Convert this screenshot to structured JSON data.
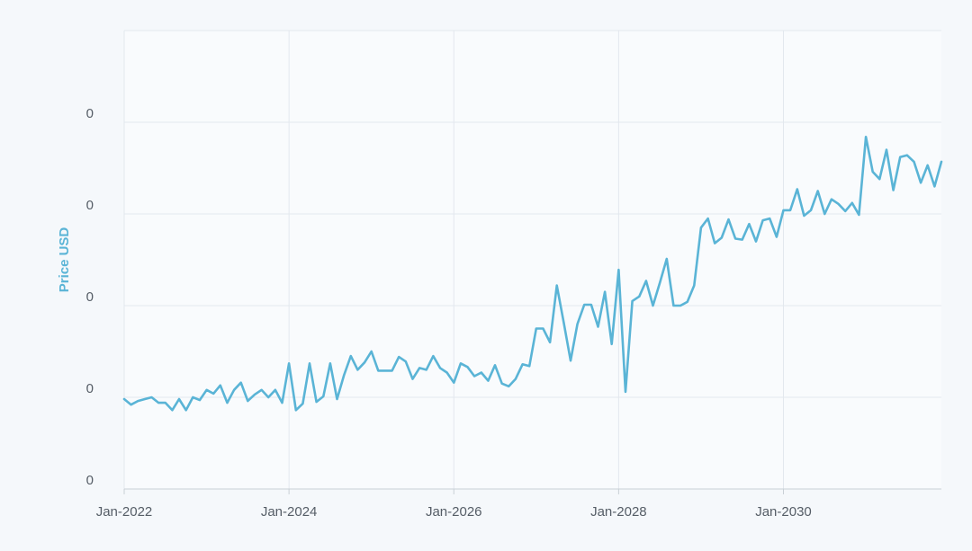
{
  "chart_data": {
    "type": "line",
    "title": "",
    "xlabel": "",
    "ylabel": "Price USD",
    "grid": true,
    "legend": "none",
    "colors": {
      "line": "#5ab4d6",
      "grid": "#e3e8ee",
      "axis": "#c9d0d6",
      "ylabel": "#5ab4d6",
      "plot_bg": "#f9fbfd",
      "page_bg": "#f5f8fb"
    },
    "x_ticks": [
      "Jan-2022",
      "Jan-2024",
      "Jan-2026",
      "Jan-2028",
      "Jan-2030"
    ],
    "y_tick_labels": [
      "0",
      "0",
      "0",
      "0",
      "0"
    ],
    "x_range": [
      "2022-01",
      "2031-12"
    ],
    "y_range": [
      0,
      5
    ],
    "series": [
      {
        "x": [
          "2022-01",
          "2022-02",
          "2022-03",
          "2022-04",
          "2022-05",
          "2022-06",
          "2022-07",
          "2022-08",
          "2022-09",
          "2022-10",
          "2022-11",
          "2022-12",
          "2023-01",
          "2023-02",
          "2023-03",
          "2023-04",
          "2023-05",
          "2023-06",
          "2023-07",
          "2023-08",
          "2023-09",
          "2023-10",
          "2023-11",
          "2023-12",
          "2024-01",
          "2024-02",
          "2024-03",
          "2024-04",
          "2024-05",
          "2024-06",
          "2024-07",
          "2024-08",
          "2024-09",
          "2024-10",
          "2024-11",
          "2024-12",
          "2025-01",
          "2025-02",
          "2025-03",
          "2025-04",
          "2025-05",
          "2025-06",
          "2025-07",
          "2025-08",
          "2025-09",
          "2025-10",
          "2025-11",
          "2025-12",
          "2026-01",
          "2026-02",
          "2026-03",
          "2026-04",
          "2026-05",
          "2026-06",
          "2026-07",
          "2026-08",
          "2026-09",
          "2026-10",
          "2026-11",
          "2026-12",
          "2027-01",
          "2027-02",
          "2027-03",
          "2027-04",
          "2027-05",
          "2027-06",
          "2027-07",
          "2027-08",
          "2027-09",
          "2027-10",
          "2027-11",
          "2027-12",
          "2028-01",
          "2028-02",
          "2028-03",
          "2028-04",
          "2028-05",
          "2028-06",
          "2028-07",
          "2028-08",
          "2028-09",
          "2028-10",
          "2028-11",
          "2028-12",
          "2029-01",
          "2029-02",
          "2029-03",
          "2029-04",
          "2029-05",
          "2029-06",
          "2029-07",
          "2029-08",
          "2029-09",
          "2029-10",
          "2029-11",
          "2029-12",
          "2030-01",
          "2030-02",
          "2030-03",
          "2030-04",
          "2030-05",
          "2030-06",
          "2030-07",
          "2030-08",
          "2030-09",
          "2030-10",
          "2030-11",
          "2030-12",
          "2031-01",
          "2031-02",
          "2031-03",
          "2031-04",
          "2031-05",
          "2031-06",
          "2031-07",
          "2031-08",
          "2031-09",
          "2031-10",
          "2031-11",
          "2031-12"
        ],
        "values": [
          0.98,
          0.92,
          0.96,
          0.98,
          1.0,
          0.94,
          0.94,
          0.86,
          0.98,
          0.86,
          1.0,
          0.97,
          1.08,
          1.04,
          1.13,
          0.94,
          1.08,
          1.16,
          0.96,
          1.03,
          1.08,
          1.0,
          1.08,
          0.94,
          1.37,
          0.86,
          0.93,
          1.37,
          0.95,
          1.01,
          1.37,
          0.98,
          1.24,
          1.45,
          1.3,
          1.38,
          1.5,
          1.29,
          1.29,
          1.29,
          1.44,
          1.39,
          1.2,
          1.32,
          1.3,
          1.45,
          1.32,
          1.27,
          1.16,
          1.37,
          1.33,
          1.23,
          1.27,
          1.18,
          1.35,
          1.15,
          1.12,
          1.2,
          1.36,
          1.34,
          1.75,
          1.75,
          1.6,
          2.22,
          1.82,
          1.4,
          1.8,
          2.01,
          2.01,
          1.77,
          2.15,
          1.58,
          2.39,
          1.06,
          2.05,
          2.1,
          2.27,
          2.0,
          2.25,
          2.51,
          2.0,
          2.0,
          2.04,
          2.22,
          2.85,
          2.95,
          2.68,
          2.74,
          2.94,
          2.73,
          2.72,
          2.89,
          2.7,
          2.93,
          2.95,
          2.75,
          3.04,
          3.04,
          3.27,
          2.98,
          3.04,
          3.25,
          3.0,
          3.16,
          3.11,
          3.03,
          3.12,
          2.99,
          3.84,
          3.46,
          3.38,
          3.7,
          3.26,
          3.62,
          3.64,
          3.57,
          3.34,
          3.53,
          3.3,
          3.57
        ]
      }
    ]
  }
}
